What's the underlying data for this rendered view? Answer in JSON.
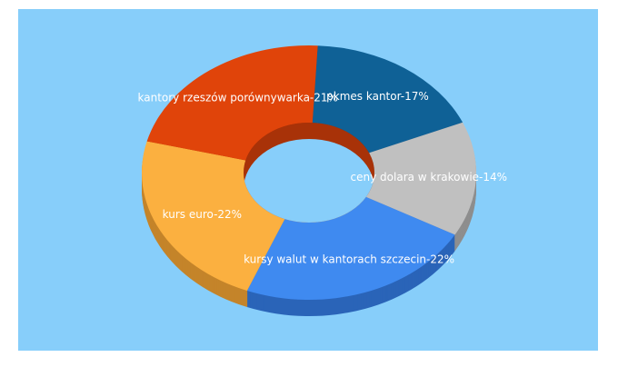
{
  "chart_data": {
    "type": "donut3d",
    "categories": [
      "pkmes kantor-17%",
      "ceny dolara w krakowie-14%",
      "kursy walut w kantorach szczecin-22%",
      "kurs euro-22%",
      "kantory rzeszów porównywarka-21%"
    ],
    "values": [
      17,
      14,
      22,
      22,
      21
    ],
    "colors": [
      "#0f6196",
      "#c0c0c0",
      "#3f8af0",
      "#fbb040",
      "#e0440a"
    ],
    "side_colors": [
      "#0a4570",
      "#8e8e8e",
      "#2a64b8",
      "#c4842a",
      "#a83208"
    ],
    "background": "#87cefa"
  }
}
